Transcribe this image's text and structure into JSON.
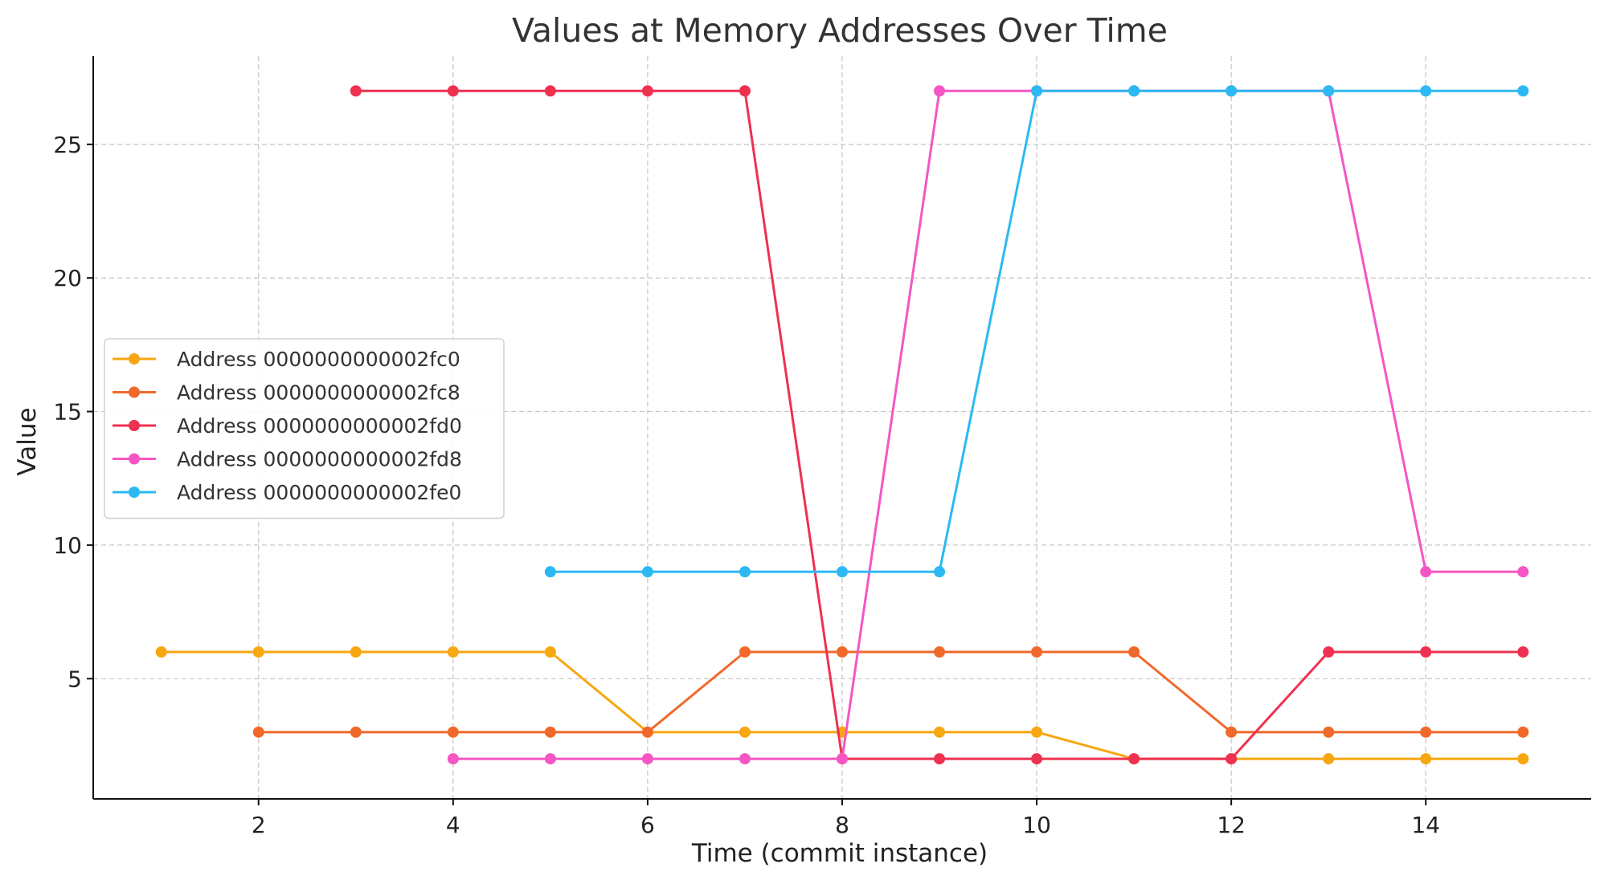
{
  "chart_data": {
    "type": "line",
    "title": "Values at Memory Addresses Over Time",
    "xlabel": "Time (commit instance)",
    "ylabel": "Value",
    "xlim": [
      0.3,
      15.7
    ],
    "ylim": [
      0.5,
      28.3
    ],
    "xticks": [
      2,
      4,
      6,
      8,
      10,
      12,
      14
    ],
    "yticks": [
      5,
      10,
      15,
      20,
      25
    ],
    "grid": true,
    "legend_position": "center-left",
    "series": [
      {
        "name": "Address 0000000000002fc0",
        "color": "#f7a711",
        "x": [
          1,
          2,
          3,
          4,
          5,
          6,
          7,
          8,
          9,
          10,
          11,
          12,
          13,
          14,
          15
        ],
        "y": [
          6,
          6,
          6,
          6,
          6,
          3,
          3,
          3,
          3,
          3,
          2,
          2,
          2,
          2,
          2
        ]
      },
      {
        "name": "Address 0000000000002fc8",
        "color": "#f0692a",
        "x": [
          2,
          3,
          4,
          5,
          6,
          7,
          8,
          9,
          10,
          11,
          12,
          13,
          14,
          15
        ],
        "y": [
          3,
          3,
          3,
          3,
          3,
          6,
          6,
          6,
          6,
          6,
          3,
          3,
          3,
          3
        ]
      },
      {
        "name": "Address 0000000000002fd0",
        "color": "#ee3150",
        "x": [
          3,
          4,
          5,
          6,
          7,
          8,
          9,
          10,
          11,
          12,
          13,
          14,
          15
        ],
        "y": [
          27,
          27,
          27,
          27,
          27,
          2,
          2,
          2,
          2,
          2,
          6,
          6,
          6
        ]
      },
      {
        "name": "Address 0000000000002fd8",
        "color": "#f556c4",
        "x": [
          4,
          5,
          6,
          7,
          8,
          9,
          10,
          11,
          12,
          13,
          14,
          15
        ],
        "y": [
          2,
          2,
          2,
          2,
          2,
          27,
          27,
          27,
          27,
          27,
          9,
          9
        ]
      },
      {
        "name": "Address 0000000000002fe0",
        "color": "#2cb9f3",
        "x": [
          5,
          6,
          7,
          8,
          9,
          10,
          11,
          12,
          13,
          14,
          15
        ],
        "y": [
          9,
          9,
          9,
          9,
          9,
          27,
          27,
          27,
          27,
          27,
          27
        ]
      }
    ]
  }
}
